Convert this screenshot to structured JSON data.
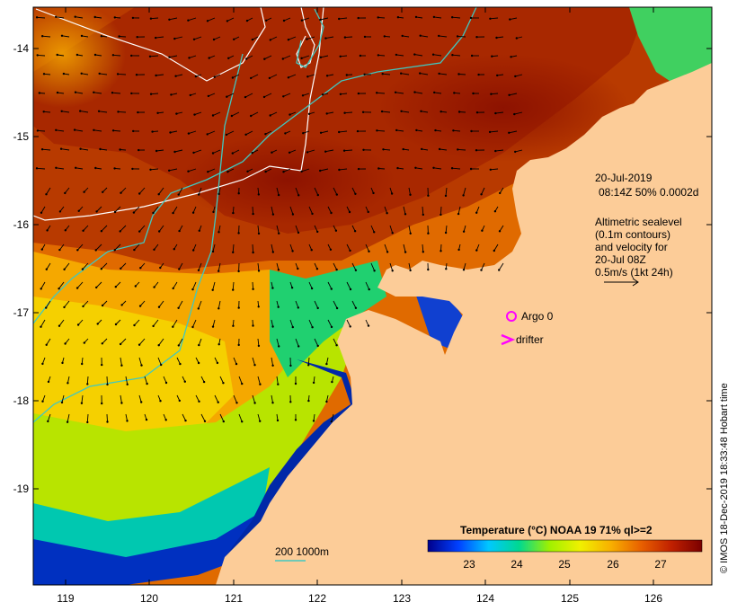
{
  "map": {
    "datetime_line1": "20-Jul-2019",
    "datetime_line2": "08:14Z  50% 0.0002d",
    "altimetry_lines": [
      "Altimetric sealevel",
      "(0.1m contours)",
      "and velocity for",
      "20-Jul 08Z",
      "0.5m/s (1kt 24h)"
    ],
    "argo_label": "Argo 0",
    "drifter_label": "drifter",
    "depth_label": "200  1000m",
    "credit": "© IMOS 18-Dec-2019 18:33:48 Hobart time",
    "legend_title": "Temperature (°C) NOAA 19 71% ql>=2",
    "legend_ticks": [
      "23",
      "24",
      "25",
      "26",
      "27"
    ],
    "legend_colors": [
      "#00008b",
      "#0040ff",
      "#00c8ff",
      "#00d890",
      "#a0f000",
      "#f0f000",
      "#f8b000",
      "#e86000",
      "#c02000",
      "#7a0000"
    ],
    "land_color": "#fccc98",
    "current_line_color": "#40c8c0",
    "contour_color": "#ffffff",
    "argo_color": "#ff00ff",
    "drifter_color": "#ff00ff"
  },
  "axes": {
    "lon_ticks": [
      "119",
      "120",
      "121",
      "122",
      "123",
      "124",
      "125",
      "126"
    ],
    "lat_ticks": [
      "-14",
      "-15",
      "-16",
      "-17",
      "-18",
      "-19"
    ]
  }
}
